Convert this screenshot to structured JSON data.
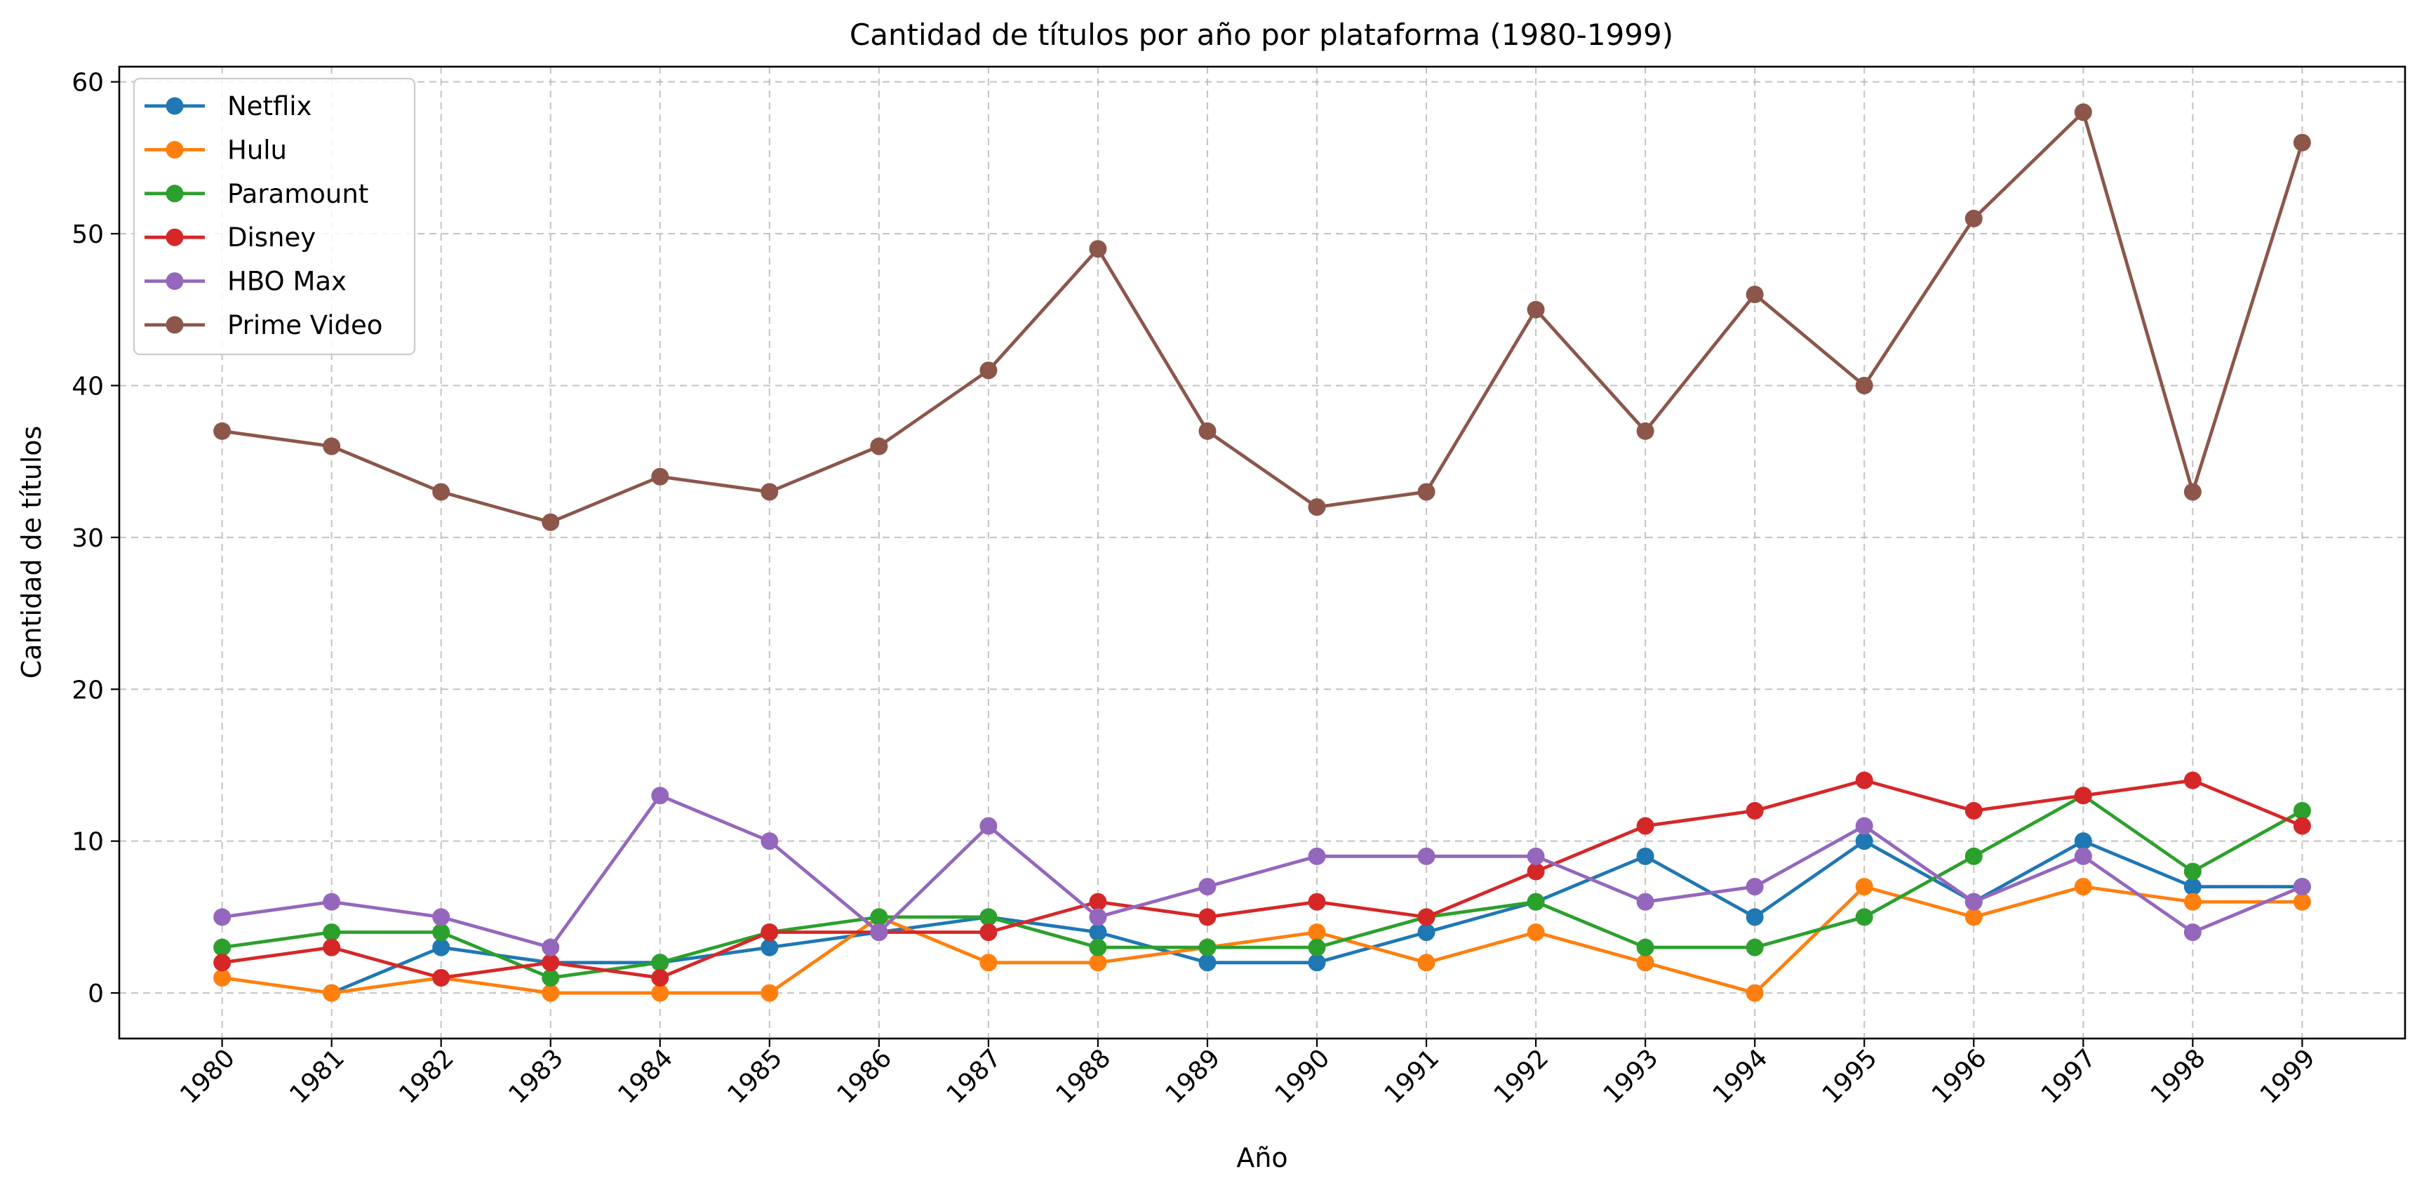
{
  "chart_data": {
    "type": "line",
    "title": "Cantidad de títulos por año por plataforma (1980-1999)",
    "xlabel": "Año",
    "ylabel": "Cantidad de títulos",
    "x": [
      "1980",
      "1981",
      "1982",
      "1983",
      "1984",
      "1985",
      "1986",
      "1987",
      "1988",
      "1989",
      "1990",
      "1991",
      "1992",
      "1993",
      "1994",
      "1995",
      "1996",
      "1997",
      "1998",
      "1999"
    ],
    "ylim": [
      -3,
      61
    ],
    "yticks": [
      0,
      10,
      20,
      30,
      40,
      50,
      60
    ],
    "grid": true,
    "legend_position": "top-left",
    "series": [
      {
        "name": "Netflix",
        "color": "#1f77b4",
        "values": [
          null,
          0,
          3,
          2,
          2,
          3,
          4,
          5,
          4,
          2,
          2,
          4,
          6,
          9,
          5,
          10,
          6,
          10,
          7,
          7
        ]
      },
      {
        "name": "Hulu",
        "color": "#ff7f0e",
        "values": [
          1,
          0,
          1,
          0,
          0,
          0,
          5,
          2,
          2,
          3,
          4,
          2,
          4,
          2,
          0,
          7,
          5,
          7,
          6,
          6
        ]
      },
      {
        "name": "Paramount",
        "color": "#2ca02c",
        "values": [
          3,
          4,
          4,
          1,
          2,
          4,
          5,
          5,
          3,
          3,
          3,
          5,
          6,
          3,
          3,
          5,
          9,
          13,
          8,
          12
        ]
      },
      {
        "name": "Disney",
        "color": "#d62728",
        "values": [
          2,
          3,
          1,
          2,
          1,
          4,
          4,
          4,
          6,
          5,
          6,
          5,
          8,
          11,
          12,
          14,
          12,
          13,
          14,
          11
        ]
      },
      {
        "name": "HBO Max",
        "color": "#9467bd",
        "values": [
          5,
          6,
          5,
          3,
          13,
          10,
          4,
          11,
          5,
          7,
          9,
          9,
          9,
          6,
          7,
          11,
          6,
          9,
          4,
          7
        ]
      },
      {
        "name": "Prime Video",
        "color": "#8c564b",
        "values": [
          37,
          36,
          33,
          31,
          34,
          33,
          36,
          41,
          49,
          37,
          32,
          33,
          45,
          37,
          46,
          40,
          51,
          58,
          33,
          56
        ]
      }
    ]
  }
}
